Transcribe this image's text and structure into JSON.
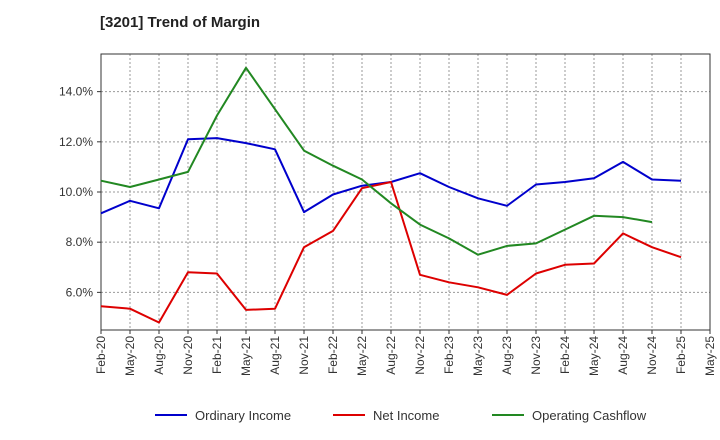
{
  "chart_data": {
    "type": "line",
    "title": "[3201]  Trend of Margin",
    "xlabel": "",
    "ylabel": "",
    "categories": [
      "Feb-20",
      "May-20",
      "Aug-20",
      "Nov-20",
      "Feb-21",
      "May-21",
      "Aug-21",
      "Nov-21",
      "Feb-22",
      "May-22",
      "Aug-22",
      "Nov-22",
      "Feb-23",
      "May-23",
      "Aug-23",
      "Nov-23",
      "Feb-24",
      "May-24",
      "Aug-24",
      "Nov-24",
      "Feb-25",
      "May-25"
    ],
    "ylim": [
      4.5,
      15.5
    ],
    "yticks": [
      6.0,
      8.0,
      10.0,
      12.0,
      14.0
    ],
    "ytick_labels": [
      "6.0%",
      "8.0%",
      "10.0%",
      "12.0%",
      "14.0%"
    ],
    "grid": true,
    "legend_position": "bottom",
    "series": [
      {
        "name": "Ordinary Income",
        "color": "#0000cc",
        "values": [
          9.15,
          9.65,
          9.35,
          12.1,
          12.15,
          11.95,
          11.7,
          9.2,
          9.9,
          10.25,
          10.4,
          10.75,
          10.2,
          9.75,
          9.45,
          10.3,
          10.4,
          10.55,
          11.2,
          10.5,
          10.45,
          null
        ]
      },
      {
        "name": "Net Income",
        "color": "#dd0000",
        "values": [
          5.45,
          5.35,
          4.8,
          6.8,
          6.75,
          5.3,
          5.35,
          7.8,
          8.45,
          10.15,
          10.4,
          6.7,
          6.4,
          6.2,
          5.9,
          6.75,
          7.1,
          7.15,
          8.35,
          7.8,
          7.4,
          null
        ]
      },
      {
        "name": "Operating Cashflow",
        "color": "#228822",
        "values": [
          10.45,
          10.2,
          10.5,
          10.8,
          13.05,
          14.95,
          13.3,
          11.65,
          11.05,
          10.5,
          9.55,
          8.7,
          8.15,
          7.5,
          7.85,
          7.95,
          8.5,
          9.05,
          9.0,
          8.8,
          null,
          null
        ]
      }
    ]
  }
}
